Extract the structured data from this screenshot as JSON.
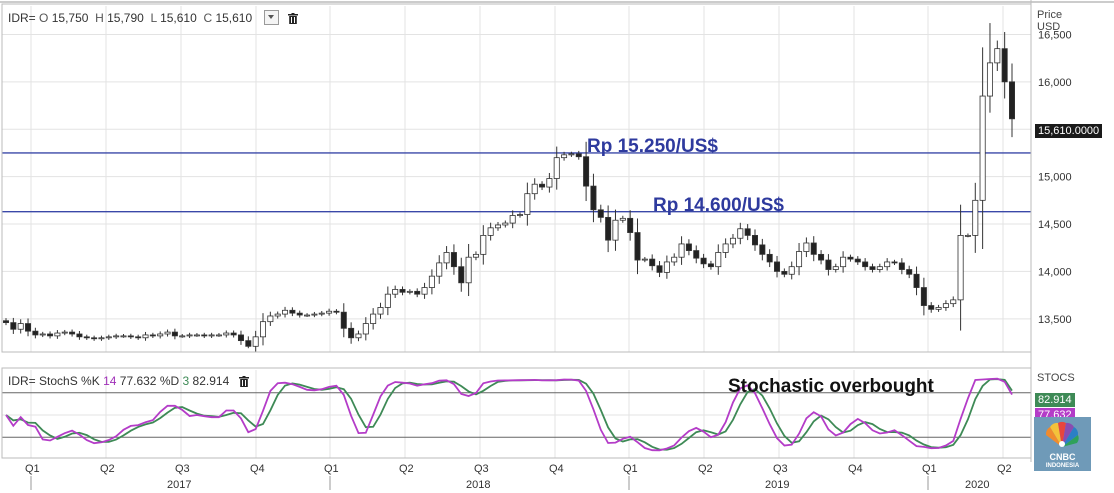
{
  "ohlc_header": {
    "symbol": "IDR=",
    "open_label": "O",
    "open": "15,750",
    "high_label": "H",
    "high": "15,790",
    "low_label": "L",
    "low": "15,610",
    "close_label": "C",
    "close": "15,610"
  },
  "stoch_header": {
    "title": "IDR= StochS",
    "k_label": "%K",
    "k_period": "14",
    "k_value": "77.632",
    "d_label": "%D",
    "d_period": "3",
    "d_value": "82.914"
  },
  "price_axis": {
    "title_line1": "Price",
    "title_line2": "USD"
  },
  "stoch_axis": {
    "title": "STOCS"
  },
  "last_price_badge": "15,610.0000",
  "stoch_badges": {
    "d": "82.914",
    "k": "77.632"
  },
  "annotations": {
    "level_high": "Rp 15.250/US$",
    "level_low": "Rp 14.600/US$",
    "stoch_note": "Stochastic overbought"
  },
  "logo": {
    "line1": "CNBC",
    "line2": "INDONESIA"
  },
  "colors": {
    "up_candle": "#ffffff",
    "down_candle": "#222222",
    "level_line": "#3a48a8",
    "k_line": "#b43cc8",
    "d_line": "#3e8a56",
    "grid": "#e3e3e3"
  },
  "chart_data": [
    {
      "type": "candlestick",
      "title": "",
      "ylabel": "Price USD",
      "ylim": [
        13150,
        16800
      ],
      "yticks": [
        13500,
        14000,
        14500,
        15000,
        15500,
        16000,
        16500
      ],
      "ytick_labels": [
        "13,500",
        "14,000",
        "14,500",
        "15,000",
        "15,500",
        "16,000",
        "16,500"
      ],
      "x_quarter_labels": [
        "Q1",
        "Q2",
        "Q3",
        "Q4",
        "Q1",
        "Q2",
        "Q3",
        "Q4",
        "Q1",
        "Q2",
        "Q3",
        "Q4",
        "Q1",
        "Q2"
      ],
      "x_year_labels": [
        "2017",
        "2018",
        "2019",
        "2020"
      ],
      "horizontal_levels": [
        15250,
        14630
      ],
      "weekly_close": [
        13460,
        13390,
        13450,
        13370,
        13330,
        13340,
        13320,
        13350,
        13360,
        13340,
        13310,
        13300,
        13290,
        13300,
        13310,
        13320,
        13320,
        13310,
        13300,
        13330,
        13320,
        13340,
        13360,
        13320,
        13320,
        13330,
        13330,
        13320,
        13330,
        13330,
        13350,
        13330,
        13270,
        13210,
        13310,
        13470,
        13530,
        13550,
        13590,
        13560,
        13540,
        13540,
        13550,
        13560,
        13580,
        13570,
        13400,
        13300,
        13340,
        13450,
        13550,
        13620,
        13760,
        13810,
        13780,
        13790,
        13760,
        13830,
        13950,
        14090,
        14200,
        14050,
        13880,
        14150,
        14180,
        14380,
        14460,
        14490,
        14510,
        14590,
        14600,
        14820,
        14920,
        14890,
        14980,
        15200,
        15230,
        15240,
        15210,
        14900,
        14650,
        14570,
        14330,
        14540,
        14560,
        14410,
        14120,
        14130,
        14060,
        13990,
        14100,
        14150,
        14290,
        14220,
        14140,
        14080,
        14050,
        14200,
        14290,
        14350,
        14450,
        14380,
        14280,
        14180,
        14100,
        14000,
        13970,
        14050,
        14210,
        14300,
        14180,
        14120,
        14020,
        14050,
        14150,
        14130,
        14100,
        14050,
        14020,
        14050,
        14100,
        14090,
        14020,
        13970,
        13830,
        13640,
        13600,
        13620,
        13660,
        13700,
        14380,
        14380,
        14750,
        15850,
        16200,
        16350,
        16000,
        15610
      ],
      "weekly_high_max": 16620,
      "weekly_low_min": 13190,
      "last_close": 15610
    },
    {
      "type": "line",
      "title": "IDR= StochS",
      "ylim": [
        0,
        100
      ],
      "series": [
        {
          "name": "%K 14",
          "last": 77.632
        },
        {
          "name": "%D 3",
          "last": 82.914
        }
      ]
    }
  ]
}
